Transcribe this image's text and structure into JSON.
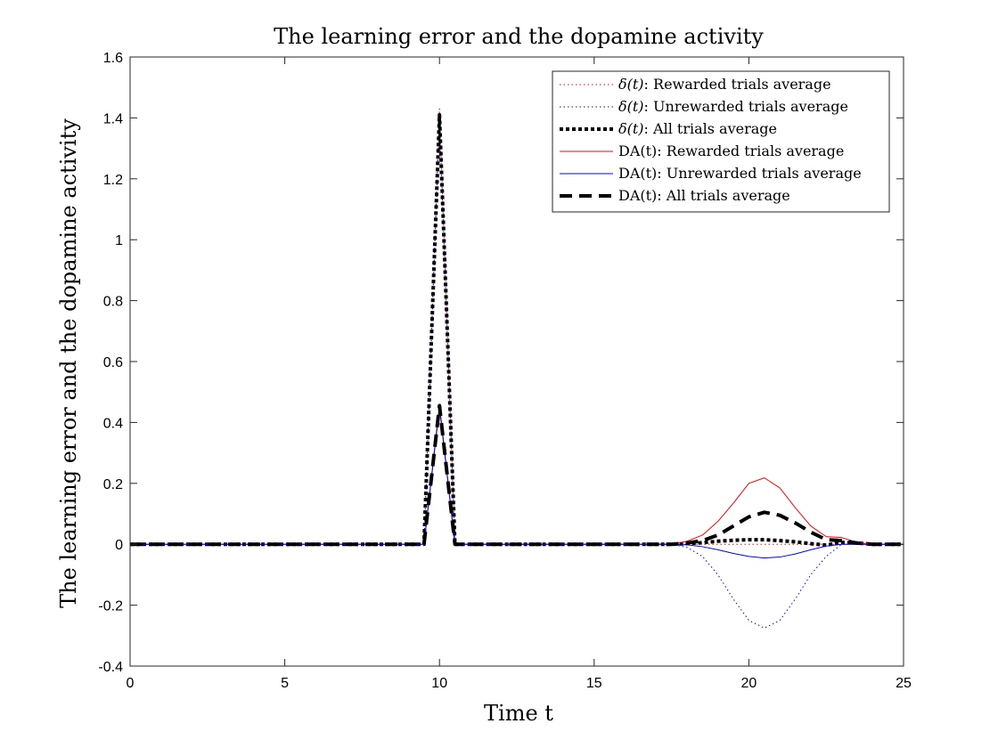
{
  "chart_data": {
    "type": "line",
    "title": "The learning error and the dopamine activity",
    "xlabel": "Time t",
    "ylabel": "The learning error and the dopamine activity",
    "xlim": [
      0,
      25
    ],
    "ylim": [
      -0.4,
      1.6
    ],
    "x_ticks": [
      0,
      5,
      10,
      15,
      20,
      25
    ],
    "x_tick_labels": [
      "0",
      "5",
      "10",
      "15",
      "20",
      "25"
    ],
    "y_ticks": [
      -0.4,
      -0.2,
      0,
      0.2,
      0.4,
      0.6,
      0.8,
      1,
      1.2,
      1.4,
      1.6
    ],
    "y_tick_labels": [
      "-0.4",
      "-0.2",
      "0",
      "0.2",
      "0.4",
      "0.6",
      "0.8",
      "1",
      "1.2",
      "1.4",
      "1.6"
    ],
    "grid": false,
    "legend_position": "top-right",
    "series": [
      {
        "name": "δ(t): Rewarded trials average",
        "legend_symbol": "δ(t)",
        "legend_text": ": Rewarded trials average",
        "color": "#ff0000",
        "style": "dotted",
        "width": "thin",
        "x": [
          0,
          9.5,
          10,
          10.5,
          17.5,
          18,
          18.5,
          19,
          19.5,
          20,
          20.5,
          21,
          21.5,
          22,
          22.5,
          23,
          23.5,
          24,
          25
        ],
        "y": [
          0,
          0,
          1.43,
          0,
          0,
          0,
          0,
          0,
          0,
          0,
          0,
          0,
          0,
          0,
          0,
          0,
          0,
          0,
          0
        ]
      },
      {
        "name": "δ(t): Unrewarded trials average",
        "legend_symbol": "δ(t)",
        "legend_text": ": Unrewarded trials average",
        "color": "#0000ff",
        "style": "dotted",
        "width": "thin",
        "x": [
          0,
          9.5,
          10,
          10.5,
          17.5,
          18,
          18.5,
          19,
          19.5,
          20,
          20.5,
          21,
          21.5,
          22,
          22.5,
          23,
          23.5,
          24,
          25
        ],
        "y": [
          0,
          0,
          1.4,
          0,
          0,
          -0.01,
          -0.04,
          -0.1,
          -0.18,
          -0.25,
          -0.275,
          -0.25,
          -0.18,
          -0.1,
          -0.04,
          0,
          0,
          0,
          0
        ]
      },
      {
        "name": "δ(t): All trials average",
        "legend_symbol": "δ(t)",
        "legend_text": ": All trials average",
        "color": "#000000",
        "style": "dotted",
        "width": "thick",
        "x": [
          0,
          9.5,
          10,
          10.5,
          17.5,
          18,
          18.5,
          19,
          19.5,
          20,
          20.5,
          21,
          21.5,
          22,
          22.5,
          23,
          23.5,
          24,
          25
        ],
        "y": [
          0,
          0,
          1.41,
          0,
          0,
          0.002,
          0.005,
          0.01,
          0.013,
          0.015,
          0.015,
          0.012,
          0.008,
          0.002,
          -0.003,
          0.006,
          0.004,
          0,
          0
        ]
      },
      {
        "name": "DA(t): Rewarded trials average",
        "legend_symbol": "DA(t)",
        "legend_text": ": Rewarded trials average",
        "color": "#ff0000",
        "style": "solid",
        "width": "thin",
        "x": [
          0,
          9.5,
          10,
          10.5,
          17.5,
          18,
          18.5,
          19,
          19.5,
          20,
          20.5,
          21,
          21.5,
          22,
          22.5,
          23,
          23.5,
          24,
          25
        ],
        "y": [
          0,
          0,
          0.46,
          0,
          0,
          0.01,
          0.03,
          0.075,
          0.135,
          0.2,
          0.218,
          0.185,
          0.12,
          0.06,
          0.025,
          0.022,
          0.006,
          0,
          0
        ]
      },
      {
        "name": "DA(t): Unrewarded trials average",
        "legend_symbol": "DA(t)",
        "legend_text": ": Unrewarded trials average",
        "color": "#0000ff",
        "style": "solid",
        "width": "thin",
        "x": [
          0,
          9.5,
          10,
          10.5,
          17.5,
          18,
          18.5,
          19,
          19.5,
          20,
          20.5,
          21,
          21.5,
          22,
          22.5,
          23,
          23.5,
          24,
          25
        ],
        "y": [
          0,
          0,
          0.45,
          0,
          0,
          -0.002,
          -0.008,
          -0.018,
          -0.03,
          -0.04,
          -0.045,
          -0.042,
          -0.032,
          -0.018,
          -0.006,
          0,
          0,
          0,
          0
        ]
      },
      {
        "name": "DA(t): All trials average",
        "legend_symbol": "DA(t)",
        "legend_text": ": All trials average",
        "color": "#000000",
        "style": "dashed",
        "width": "thick",
        "x": [
          0,
          9.5,
          10,
          10.5,
          17.5,
          18,
          18.5,
          19,
          19.5,
          20,
          20.5,
          21,
          21.5,
          22,
          22.5,
          23,
          23.5,
          24,
          25
        ],
        "y": [
          0,
          0,
          0.455,
          0,
          0,
          0.004,
          0.012,
          0.03,
          0.06,
          0.09,
          0.105,
          0.095,
          0.07,
          0.04,
          0.015,
          0.012,
          0.004,
          0,
          0
        ]
      }
    ]
  }
}
